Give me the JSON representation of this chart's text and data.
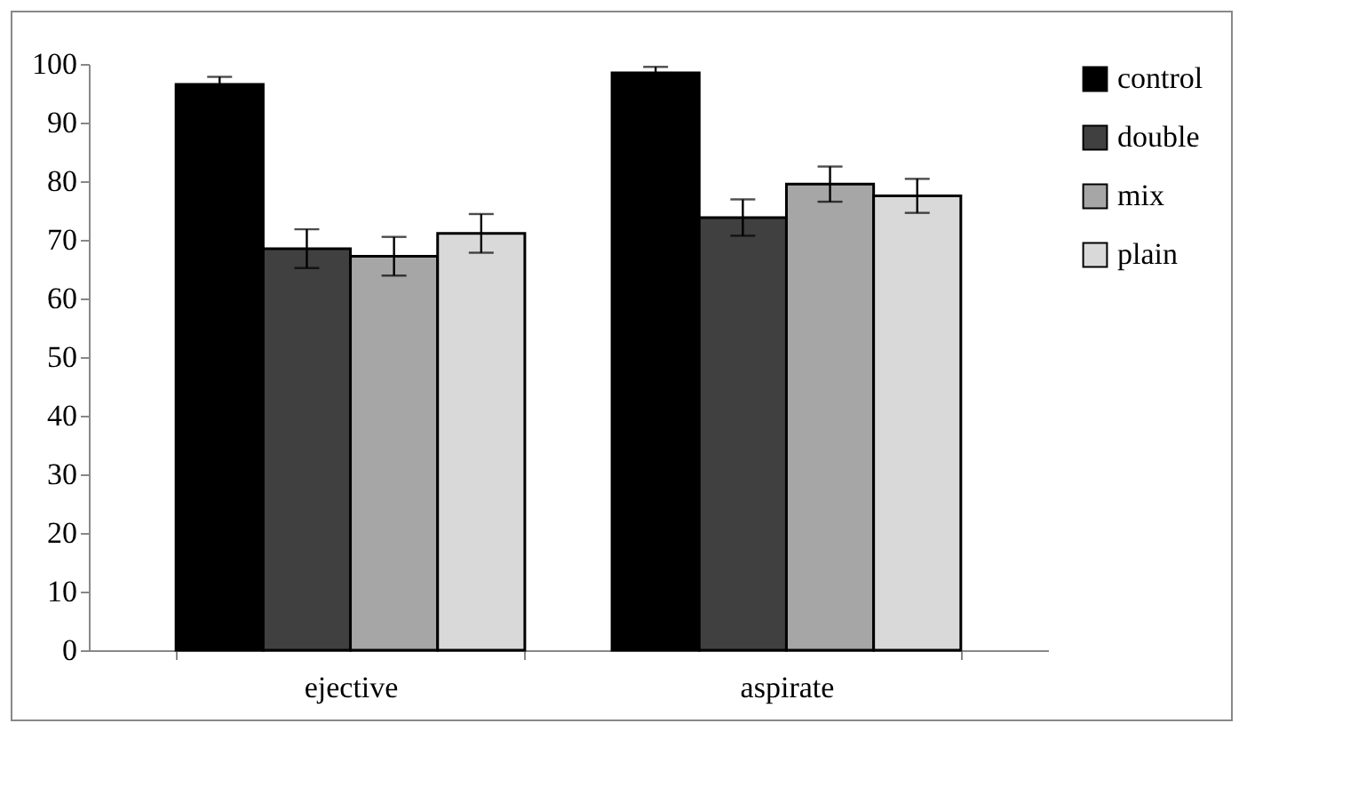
{
  "chart_data": {
    "type": "bar",
    "categories": [
      "ejective",
      "aspirate"
    ],
    "series": [
      {
        "name": "control",
        "color": "#000000",
        "values": [
          96.5,
          98.5
        ],
        "errors": [
          1.3,
          1
        ]
      },
      {
        "name": "double",
        "color": "#404040",
        "values": [
          68.5,
          73.8
        ],
        "errors": [
          3.3,
          3.1
        ]
      },
      {
        "name": "mix",
        "color": "#a6a6a6",
        "values": [
          67.2,
          79.5
        ],
        "errors": [
          3.3,
          3
        ]
      },
      {
        "name": "plain",
        "color": "#d9d9d9",
        "values": [
          71.1,
          77.5
        ],
        "errors": [
          3.3,
          2.9
        ]
      }
    ],
    "ylim": [
      0,
      100
    ],
    "yticks": [
      0,
      10,
      20,
      30,
      40,
      50,
      60,
      70,
      80,
      90,
      100
    ],
    "grid": false,
    "legend": "right"
  }
}
